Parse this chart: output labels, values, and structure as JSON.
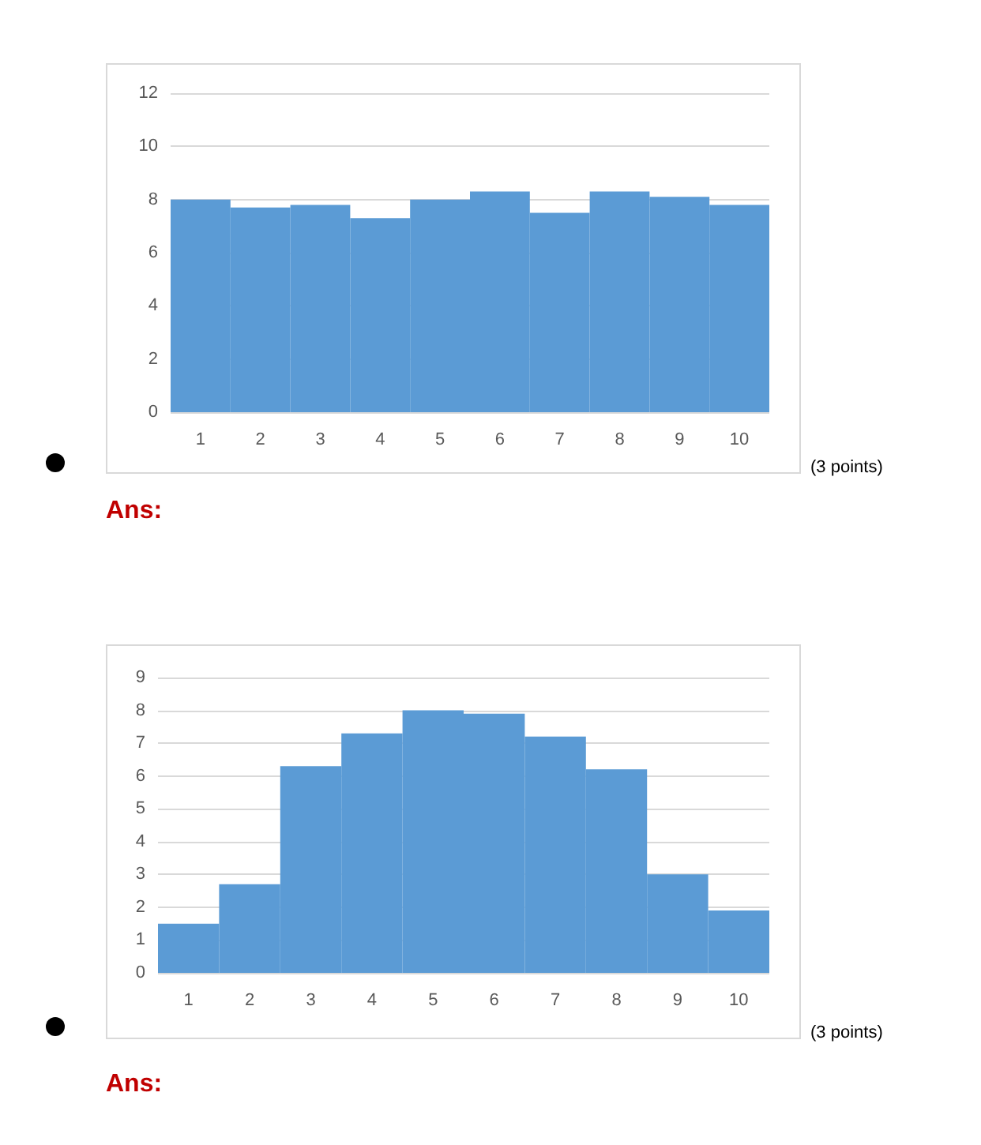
{
  "chart_data": [
    {
      "type": "bar",
      "categories": [
        "1",
        "2",
        "3",
        "4",
        "5",
        "6",
        "7",
        "8",
        "9",
        "10"
      ],
      "values": [
        8.0,
        7.7,
        7.8,
        7.3,
        8.0,
        8.3,
        7.5,
        8.3,
        8.1,
        7.8
      ],
      "color": "#5b9bd5",
      "ylim": [
        0,
        12
      ],
      "yticks": [
        0,
        2,
        4,
        6,
        8,
        10,
        12
      ],
      "grid": "y",
      "annotations": [
        "(3 points)",
        "Ans:"
      ]
    },
    {
      "type": "bar",
      "categories": [
        "1",
        "2",
        "3",
        "4",
        "5",
        "6",
        "7",
        "8",
        "9",
        "10"
      ],
      "values": [
        1.5,
        2.7,
        6.3,
        7.3,
        8.0,
        7.9,
        7.2,
        6.2,
        3.0,
        1.9
      ],
      "color": "#5b9bd5",
      "ylim": [
        0,
        9
      ],
      "yticks": [
        0,
        1,
        2,
        3,
        4,
        5,
        6,
        7,
        8,
        9
      ],
      "grid": "y",
      "annotations": [
        "(3 points)",
        "Ans:"
      ]
    }
  ]
}
